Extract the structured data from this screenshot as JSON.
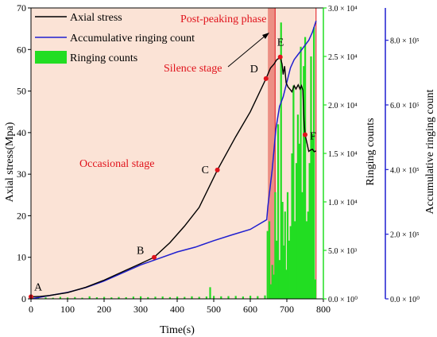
{
  "chart_data": {
    "type": "line",
    "title": "",
    "xlabel": "Time(s)",
    "ylabel_left": "Axial stress(Mpa)",
    "ylabel_right_1": "Ringing counts",
    "ylabel_right_2": "Accumulative ringing count",
    "xlim": [
      0,
      800
    ],
    "ylim_left": [
      0,
      70
    ],
    "ylim_right_1": [
      0,
      30000
    ],
    "ylim_right_2": [
      0,
      900000
    ],
    "x_ticks": [
      "0",
      "100",
      "200",
      "300",
      "400",
      "500",
      "600",
      "700",
      "800"
    ],
    "y_ticks_left": [
      "0",
      "10",
      "20",
      "30",
      "40",
      "50",
      "60",
      "70"
    ],
    "y_ticks_right_1": [
      {
        "value": 0,
        "label": "0.0 × 10⁰"
      },
      {
        "value": 5000,
        "label": "5.0 × 10³"
      },
      {
        "value": 10000,
        "label": "1.0 × 10⁴"
      },
      {
        "value": 15000,
        "label": "1.5 × 10⁴"
      },
      {
        "value": 20000,
        "label": "2.0 × 10⁴"
      },
      {
        "value": 25000,
        "label": "2.5 × 10⁴"
      },
      {
        "value": 30000,
        "label": "3.0 × 10⁴"
      }
    ],
    "y_ticks_right_2": [
      {
        "value": 0,
        "label": "0.0 × 10⁰"
      },
      {
        "value": 200000,
        "label": "2.0 × 10⁵"
      },
      {
        "value": 400000,
        "label": "4.0 × 10⁵"
      },
      {
        "value": 600000,
        "label": "6.0 × 10⁵"
      },
      {
        "value": 800000,
        "label": "8.0 × 10⁵"
      }
    ],
    "legend": {
      "placement": "top-left",
      "entries": [
        "Axial stress",
        "Accumulative ringing count",
        "Ringing counts"
      ]
    },
    "colors": {
      "stress": "#000000",
      "accum": "#1f1fd0",
      "ringing": "#22dd22",
      "bg_region": "#fbe3d6",
      "silence_region": "#ec8f84",
      "red": "#e0121b"
    },
    "regions": [
      {
        "name": "occasional",
        "x": [
          0,
          648
        ]
      },
      {
        "name": "silence",
        "x": [
          648,
          668
        ]
      },
      {
        "name": "post_peaking",
        "x": [
          668,
          780
        ]
      }
    ],
    "annotations": {
      "occasional_stage": "Occasional stage",
      "silence_stage": "Silence stage",
      "post_peaking_phase": "Post-peaking phase"
    },
    "key_points": [
      {
        "label": "A",
        "x": 0,
        "y": 0.5
      },
      {
        "label": "B",
        "x": 337,
        "y": 10.0
      },
      {
        "label": "C",
        "x": 510,
        "y": 31.0
      },
      {
        "label": "D",
        "x": 643,
        "y": 53.0
      },
      {
        "label": "E",
        "x": 682,
        "y": 58.2
      },
      {
        "label": "F",
        "x": 750,
        "y": 39.5
      }
    ],
    "series": [
      {
        "name": "Axial stress",
        "axis": "left",
        "x": [
          0,
          25,
          50,
          100,
          150,
          200,
          250,
          300,
          337,
          380,
          420,
          460,
          510,
          560,
          600,
          643,
          655,
          665,
          672,
          678,
          682,
          687,
          690,
          694,
          698,
          703,
          708,
          714,
          720,
          725,
          731,
          736,
          740,
          744,
          747,
          750,
          755,
          760,
          765,
          770,
          775,
          780
        ],
        "y": [
          0.5,
          0.6,
          0.8,
          1.5,
          2.8,
          4.5,
          6.5,
          8.5,
          10.0,
          13.5,
          17.5,
          22.0,
          31.0,
          39.0,
          45.0,
          53.0,
          55.5,
          56.5,
          57.5,
          57.9,
          58.2,
          56.5,
          54.0,
          56.0,
          52.0,
          51.0,
          50.5,
          49.8,
          51.3,
          50.5,
          51.5,
          50.5,
          51.3,
          50.2,
          43.0,
          39.5,
          37.5,
          35.5,
          35.8,
          36.0,
          35.4,
          35.6
        ]
      },
      {
        "name": "Accumulative ringing count",
        "axis": "right2",
        "x": [
          0,
          50,
          100,
          150,
          200,
          250,
          300,
          350,
          400,
          450,
          500,
          550,
          600,
          645,
          648,
          660,
          670,
          680,
          690,
          700,
          710,
          720,
          730,
          740,
          750,
          760,
          770,
          780
        ],
        "y": [
          0,
          10000,
          20000,
          35000,
          55000,
          80000,
          105000,
          125000,
          145000,
          160000,
          180000,
          198000,
          215000,
          245000,
          285000,
          400000,
          525000,
          595000,
          625000,
          670000,
          715000,
          740000,
          755000,
          770000,
          785000,
          800000,
          825000,
          860000
        ]
      },
      {
        "name": "Ringing counts",
        "axis": "right1",
        "type": "bar",
        "x": [
          5,
          20,
          40,
          60,
          80,
          100,
          120,
          140,
          160,
          180,
          200,
          220,
          240,
          260,
          280,
          300,
          320,
          340,
          360,
          380,
          400,
          420,
          440,
          460,
          480,
          490,
          500,
          520,
          540,
          560,
          580,
          600,
          620,
          640,
          647,
          652,
          656,
          660,
          664,
          668,
          672,
          676,
          680,
          684,
          688,
          692,
          695,
          698,
          702,
          706,
          710,
          714,
          718,
          722,
          726,
          730,
          734,
          738,
          742,
          746,
          750,
          754,
          758,
          762,
          766,
          770,
          774,
          778
        ],
        "y": [
          120,
          90,
          150,
          110,
          200,
          140,
          180,
          120,
          260,
          160,
          200,
          150,
          190,
          170,
          230,
          260,
          180,
          220,
          240,
          180,
          230,
          200,
          260,
          210,
          240,
          1200,
          300,
          260,
          280,
          300,
          240,
          320,
          280,
          350,
          7000,
          8000,
          1500,
          3500,
          2500,
          11000,
          6000,
          18000,
          4000,
          28500,
          10000,
          5500,
          9000,
          3000,
          11000,
          6000,
          7500,
          15000,
          22000,
          8000,
          14000,
          19000,
          16000,
          26000,
          11000,
          24000,
          27000,
          8000,
          9000,
          14000,
          25000,
          17000,
          28000,
          2000
        ]
      }
    ]
  }
}
